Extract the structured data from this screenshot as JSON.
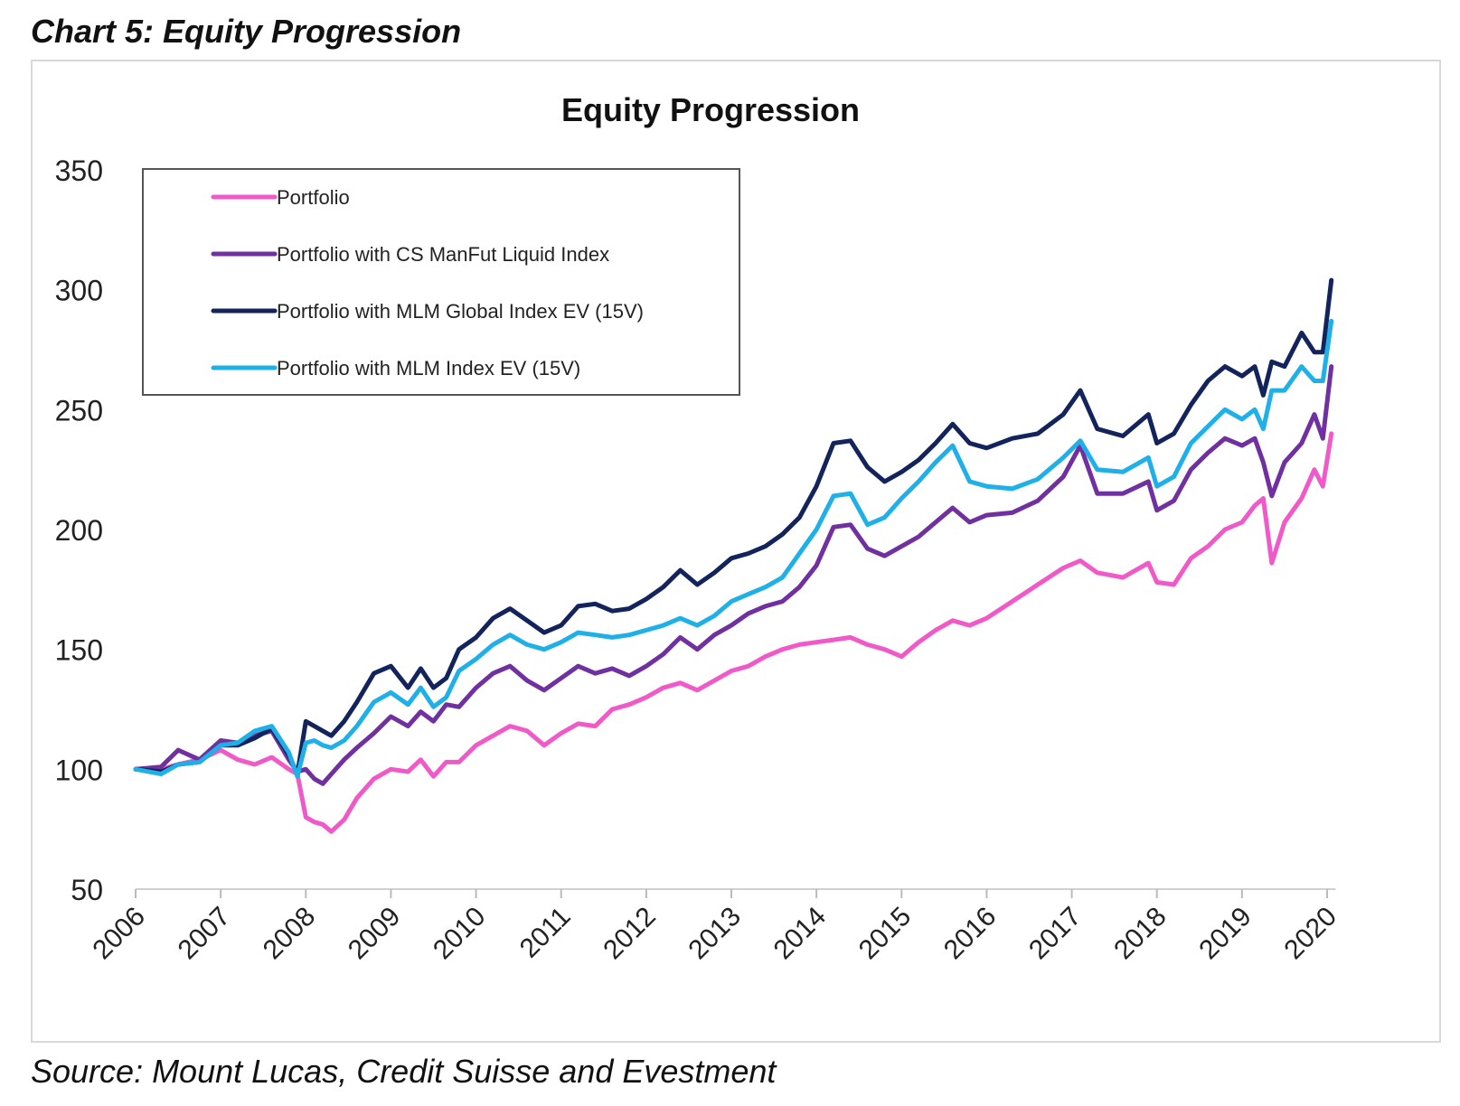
{
  "heading": "Chart 5: Equity Progression",
  "source": "Source: Mount Lucas, Credit Suisse and Evestment",
  "chart_data": {
    "type": "line",
    "title": "Equity Progression",
    "xlabel": "",
    "ylabel": "",
    "ylim": [
      50,
      350
    ],
    "xlim": [
      2006,
      2020.1
    ],
    "y_ticks": [
      "50",
      "100",
      "150",
      "200",
      "250",
      "300",
      "350"
    ],
    "x_ticks": [
      "2006",
      "2007",
      "2008",
      "2009",
      "2010",
      "2011",
      "2012",
      "2013",
      "2014",
      "2015",
      "2016",
      "2017",
      "2018",
      "2019",
      "2020"
    ],
    "grid": false,
    "legend_position": "top-left",
    "series": [
      {
        "name": "Portfolio",
        "color": "#f05ac8",
        "x": [
          2006,
          2006.3,
          2006.5,
          2006.75,
          2007,
          2007.2,
          2007.4,
          2007.6,
          2007.8,
          2007.9,
          2008,
          2008.1,
          2008.2,
          2008.3,
          2008.45,
          2008.6,
          2008.8,
          2009,
          2009.2,
          2009.35,
          2009.5,
          2009.65,
          2009.8,
          2010,
          2010.2,
          2010.4,
          2010.6,
          2010.8,
          2011,
          2011.2,
          2011.4,
          2011.6,
          2011.8,
          2012,
          2012.2,
          2012.4,
          2012.6,
          2012.8,
          2013,
          2013.2,
          2013.4,
          2013.6,
          2013.8,
          2014,
          2014.2,
          2014.4,
          2014.6,
          2014.8,
          2015,
          2015.2,
          2015.4,
          2015.6,
          2015.8,
          2016,
          2016.3,
          2016.6,
          2016.9,
          2017.1,
          2017.3,
          2017.6,
          2017.9,
          2018,
          2018.2,
          2018.4,
          2018.6,
          2018.8,
          2019,
          2019.15,
          2019.25,
          2019.35,
          2019.5,
          2019.7,
          2019.85,
          2019.95,
          2020.05
        ],
        "values": [
          100,
          100,
          102,
          104,
          108,
          104,
          102,
          105,
          100,
          98,
          80,
          78,
          77,
          74,
          79,
          88,
          96,
          100,
          99,
          104,
          97,
          103,
          103,
          110,
          114,
          118,
          116,
          110,
          115,
          119,
          118,
          125,
          127,
          130,
          134,
          136,
          133,
          137,
          141,
          143,
          147,
          150,
          152,
          153,
          154,
          155,
          152,
          150,
          147,
          153,
          158,
          162,
          160,
          163,
          170,
          177,
          184,
          187,
          182,
          180,
          186,
          178,
          177,
          188,
          193,
          200,
          203,
          210,
          213,
          186,
          203,
          213,
          225,
          218,
          240
        ]
      },
      {
        "name": "Portfolio with CS ManFut Liquid Index",
        "color": "#7030a0",
        "x": [
          2006,
          2006.3,
          2006.5,
          2006.75,
          2007,
          2007.2,
          2007.4,
          2007.6,
          2007.8,
          2007.9,
          2008,
          2008.1,
          2008.2,
          2008.3,
          2008.45,
          2008.6,
          2008.8,
          2009,
          2009.2,
          2009.35,
          2009.5,
          2009.65,
          2009.8,
          2010,
          2010.2,
          2010.4,
          2010.6,
          2010.8,
          2011,
          2011.2,
          2011.4,
          2011.6,
          2011.8,
          2012,
          2012.2,
          2012.4,
          2012.6,
          2012.8,
          2013,
          2013.2,
          2013.4,
          2013.6,
          2013.8,
          2014,
          2014.2,
          2014.4,
          2014.6,
          2014.8,
          2015,
          2015.2,
          2015.4,
          2015.6,
          2015.8,
          2016,
          2016.3,
          2016.6,
          2016.9,
          2017.1,
          2017.3,
          2017.6,
          2017.9,
          2018,
          2018.2,
          2018.4,
          2018.6,
          2018.8,
          2019,
          2019.15,
          2019.25,
          2019.35,
          2019.5,
          2019.7,
          2019.85,
          2019.95,
          2020.05
        ],
        "values": [
          100,
          101,
          108,
          104,
          112,
          111,
          114,
          116,
          104,
          99,
          100,
          96,
          94,
          98,
          104,
          109,
          115,
          122,
          118,
          124,
          120,
          127,
          126,
          134,
          140,
          143,
          137,
          133,
          138,
          143,
          140,
          142,
          139,
          143,
          148,
          155,
          150,
          156,
          160,
          165,
          168,
          170,
          176,
          185,
          201,
          202,
          192,
          189,
          193,
          197,
          203,
          209,
          203,
          206,
          207,
          212,
          222,
          235,
          215,
          215,
          220,
          208,
          212,
          225,
          232,
          238,
          235,
          238,
          228,
          214,
          228,
          236,
          248,
          238,
          268
        ]
      },
      {
        "name": "Portfolio with MLM Global Index EV (15V)",
        "color": "#13245c",
        "x": [
          2006,
          2006.3,
          2006.5,
          2006.75,
          2007,
          2007.2,
          2007.4,
          2007.6,
          2007.8,
          2007.9,
          2008,
          2008.1,
          2008.2,
          2008.3,
          2008.45,
          2008.6,
          2008.8,
          2009,
          2009.2,
          2009.35,
          2009.5,
          2009.65,
          2009.8,
          2010,
          2010.2,
          2010.4,
          2010.6,
          2010.8,
          2011,
          2011.2,
          2011.4,
          2011.6,
          2011.8,
          2012,
          2012.2,
          2012.4,
          2012.6,
          2012.8,
          2013,
          2013.2,
          2013.4,
          2013.6,
          2013.8,
          2014,
          2014.2,
          2014.4,
          2014.6,
          2014.8,
          2015,
          2015.2,
          2015.4,
          2015.6,
          2015.8,
          2016,
          2016.3,
          2016.6,
          2016.9,
          2017.1,
          2017.3,
          2017.6,
          2017.9,
          2018,
          2018.2,
          2018.4,
          2018.6,
          2018.8,
          2019,
          2019.15,
          2019.25,
          2019.35,
          2019.5,
          2019.7,
          2019.85,
          2019.95,
          2020.05
        ],
        "values": [
          100,
          99,
          102,
          103,
          110,
          110,
          113,
          117,
          106,
          98,
          120,
          118,
          116,
          114,
          120,
          128,
          140,
          143,
          134,
          142,
          134,
          138,
          150,
          155,
          163,
          167,
          162,
          157,
          160,
          168,
          169,
          166,
          167,
          171,
          176,
          183,
          177,
          182,
          188,
          190,
          193,
          198,
          205,
          218,
          236,
          237,
          226,
          220,
          224,
          229,
          236,
          244,
          236,
          234,
          238,
          240,
          248,
          258,
          242,
          239,
          248,
          236,
          240,
          252,
          262,
          268,
          264,
          268,
          256,
          270,
          268,
          282,
          274,
          274,
          304
        ]
      },
      {
        "name": "Portfolio with MLM Index EV (15V)",
        "color": "#1fb0e8",
        "x": [
          2006,
          2006.3,
          2006.5,
          2006.75,
          2007,
          2007.2,
          2007.4,
          2007.6,
          2007.8,
          2007.9,
          2008,
          2008.1,
          2008.2,
          2008.3,
          2008.45,
          2008.6,
          2008.8,
          2009,
          2009.2,
          2009.35,
          2009.5,
          2009.65,
          2009.8,
          2010,
          2010.2,
          2010.4,
          2010.6,
          2010.8,
          2011,
          2011.2,
          2011.4,
          2011.6,
          2011.8,
          2012,
          2012.2,
          2012.4,
          2012.6,
          2012.8,
          2013,
          2013.2,
          2013.4,
          2013.6,
          2013.8,
          2014,
          2014.2,
          2014.4,
          2014.6,
          2014.8,
          2015,
          2015.2,
          2015.4,
          2015.6,
          2015.8,
          2016,
          2016.3,
          2016.6,
          2016.9,
          2017.1,
          2017.3,
          2017.6,
          2017.9,
          2018,
          2018.2,
          2018.4,
          2018.6,
          2018.8,
          2019,
          2019.15,
          2019.25,
          2019.35,
          2019.5,
          2019.7,
          2019.85,
          2019.95,
          2020.05
        ],
        "values": [
          100,
          98,
          102,
          103,
          110,
          111,
          116,
          118,
          107,
          97,
          111,
          112,
          110,
          109,
          112,
          118,
          128,
          132,
          127,
          134,
          126,
          130,
          141,
          146,
          152,
          156,
          152,
          150,
          153,
          157,
          156,
          155,
          156,
          158,
          160,
          163,
          160,
          164,
          170,
          173,
          176,
          180,
          190,
          200,
          214,
          215,
          202,
          205,
          213,
          220,
          228,
          235,
          220,
          218,
          217,
          221,
          230,
          237,
          225,
          224,
          230,
          218,
          222,
          236,
          243,
          250,
          246,
          250,
          242,
          258,
          258,
          268,
          262,
          262,
          287
        ]
      }
    ]
  }
}
